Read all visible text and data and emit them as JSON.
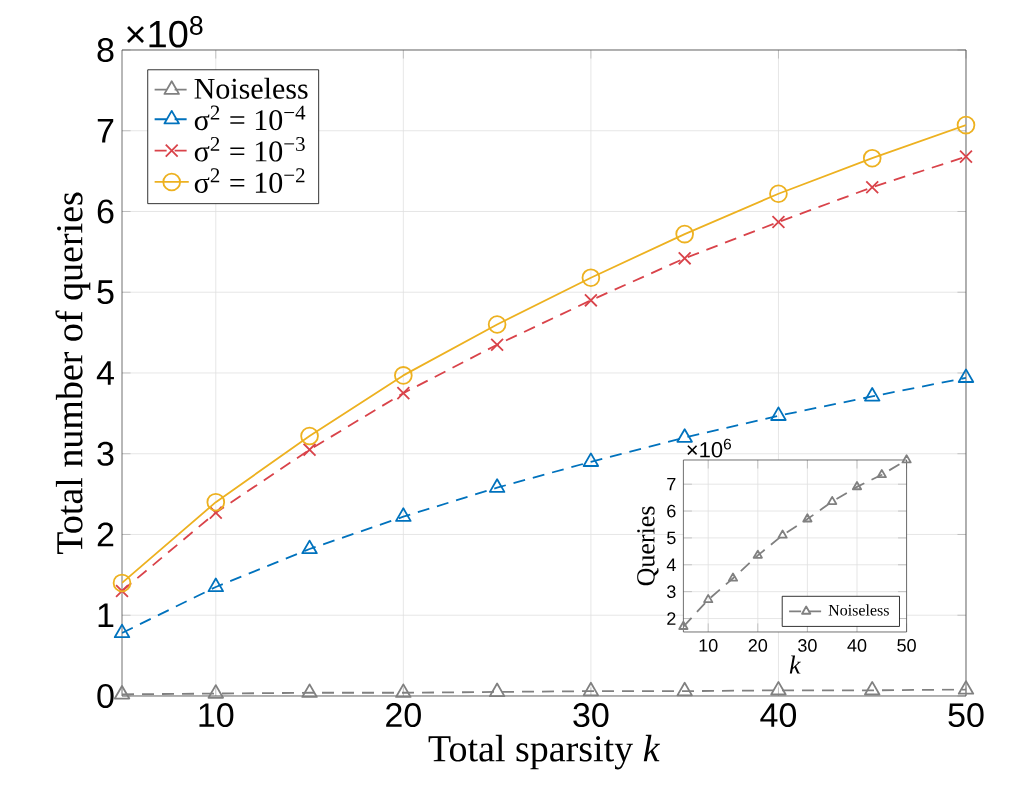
{
  "chart_data": [
    {
      "type": "line",
      "xlabel": "Total sparsity *k*",
      "ylabel": "Total number of queries",
      "annotations": [
        "×10$^{8}$"
      ],
      "x": [
        5,
        10,
        15,
        20,
        25,
        30,
        35,
        40,
        45,
        50
      ],
      "xlim": [
        5,
        50
      ],
      "xticks": [
        10,
        20,
        30,
        40,
        50
      ],
      "ylim": [
        0,
        8
      ],
      "yticks": [
        0,
        1,
        2,
        3,
        4,
        5,
        6,
        7,
        8
      ],
      "grid": true,
      "legend": "top left",
      "series": [
        {
          "name": "Noiseless",
          "color": "#808080",
          "marker": "triangle",
          "line_style": "dashed",
          "values": [
            0.02,
            0.03,
            0.04,
            0.04,
            0.05,
            0.06,
            0.06,
            0.07,
            0.07,
            0.08
          ]
        },
        {
          "name": "σ$^{2}$ = 10$^{−4}$",
          "color": "#0072bd",
          "marker": "triangle",
          "line_style": "dashed",
          "values": [
            0.78,
            1.35,
            1.82,
            2.22,
            2.58,
            2.9,
            3.2,
            3.47,
            3.71,
            3.94
          ]
        },
        {
          "name": "σ$^{2}$ = 10$^{−3}$",
          "color": "#d9434a",
          "marker": "cross",
          "line_style": "dashed",
          "values": [
            1.3,
            2.27,
            3.05,
            3.75,
            4.35,
            4.9,
            5.42,
            5.87,
            6.3,
            6.68
          ]
        },
        {
          "name": "σ$^{2}$ = 10$^{−2}$",
          "color": "#edb120",
          "marker": "circle",
          "line_style": "solid",
          "values": [
            1.4,
            2.4,
            3.22,
            3.97,
            4.6,
            5.18,
            5.72,
            6.22,
            6.66,
            7.07
          ]
        }
      ]
    },
    {
      "type": "line",
      "xlabel": "*k*",
      "ylabel": "Queries",
      "annotations": [
        "×10$^{6}$"
      ],
      "x": [
        5,
        10,
        15,
        20,
        25,
        30,
        35,
        40,
        45,
        50
      ],
      "xlim": [
        5,
        50
      ],
      "xticks": [
        10,
        20,
        30,
        40,
        50
      ],
      "ylim": [
        1.5,
        7.9
      ],
      "yticks": [
        2,
        3,
        4,
        5,
        6,
        7
      ],
      "grid": true,
      "legend": "bottom right",
      "series": [
        {
          "name": "Noiseless",
          "color": "#808080",
          "marker": "triangle",
          "line_style": "dashed",
          "values": [
            1.7,
            2.7,
            3.5,
            4.35,
            5.1,
            5.7,
            6.35,
            6.9,
            7.35,
            7.9
          ]
        }
      ]
    }
  ]
}
